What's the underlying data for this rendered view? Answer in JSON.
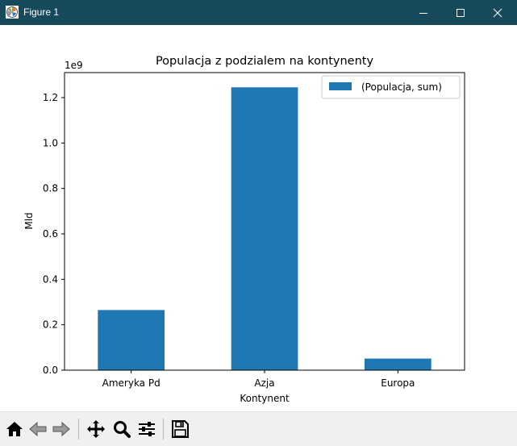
{
  "window": {
    "title": "Figure 1"
  },
  "toolbar": {
    "items": [
      {
        "name": "home-button",
        "icon": "home-icon"
      },
      {
        "name": "back-button",
        "icon": "back-arrow-icon"
      },
      {
        "name": "forward-button",
        "icon": "forward-arrow-icon"
      },
      {
        "name": "pan-button",
        "icon": "move-icon"
      },
      {
        "name": "zoom-button",
        "icon": "magnifier-icon"
      },
      {
        "name": "configure-subplots-button",
        "icon": "sliders-icon"
      },
      {
        "name": "save-button",
        "icon": "floppy-disk-icon"
      }
    ]
  },
  "chart_data": {
    "type": "bar",
    "title": "Populacja z podzialem na kontynenty",
    "xlabel": "Kontynent",
    "ylabel": "Mld",
    "offset_text": "1e9",
    "categories": [
      "Ameryka Pd",
      "Azja",
      "Europa"
    ],
    "series": [
      {
        "name": "(Populacja, sum)",
        "values": [
          265000000,
          1245000000,
          51000000
        ],
        "color": "#1f77b4"
      }
    ],
    "ylim": [
      0,
      1310000000
    ],
    "yticks": [
      0,
      200000000,
      400000000,
      600000000,
      800000000,
      1000000000,
      1200000000
    ],
    "ytick_labels": [
      "0.0",
      "0.2",
      "0.4",
      "0.6",
      "0.8",
      "1.0",
      "1.2"
    ],
    "legend_position": "upper right",
    "grid": false
  }
}
